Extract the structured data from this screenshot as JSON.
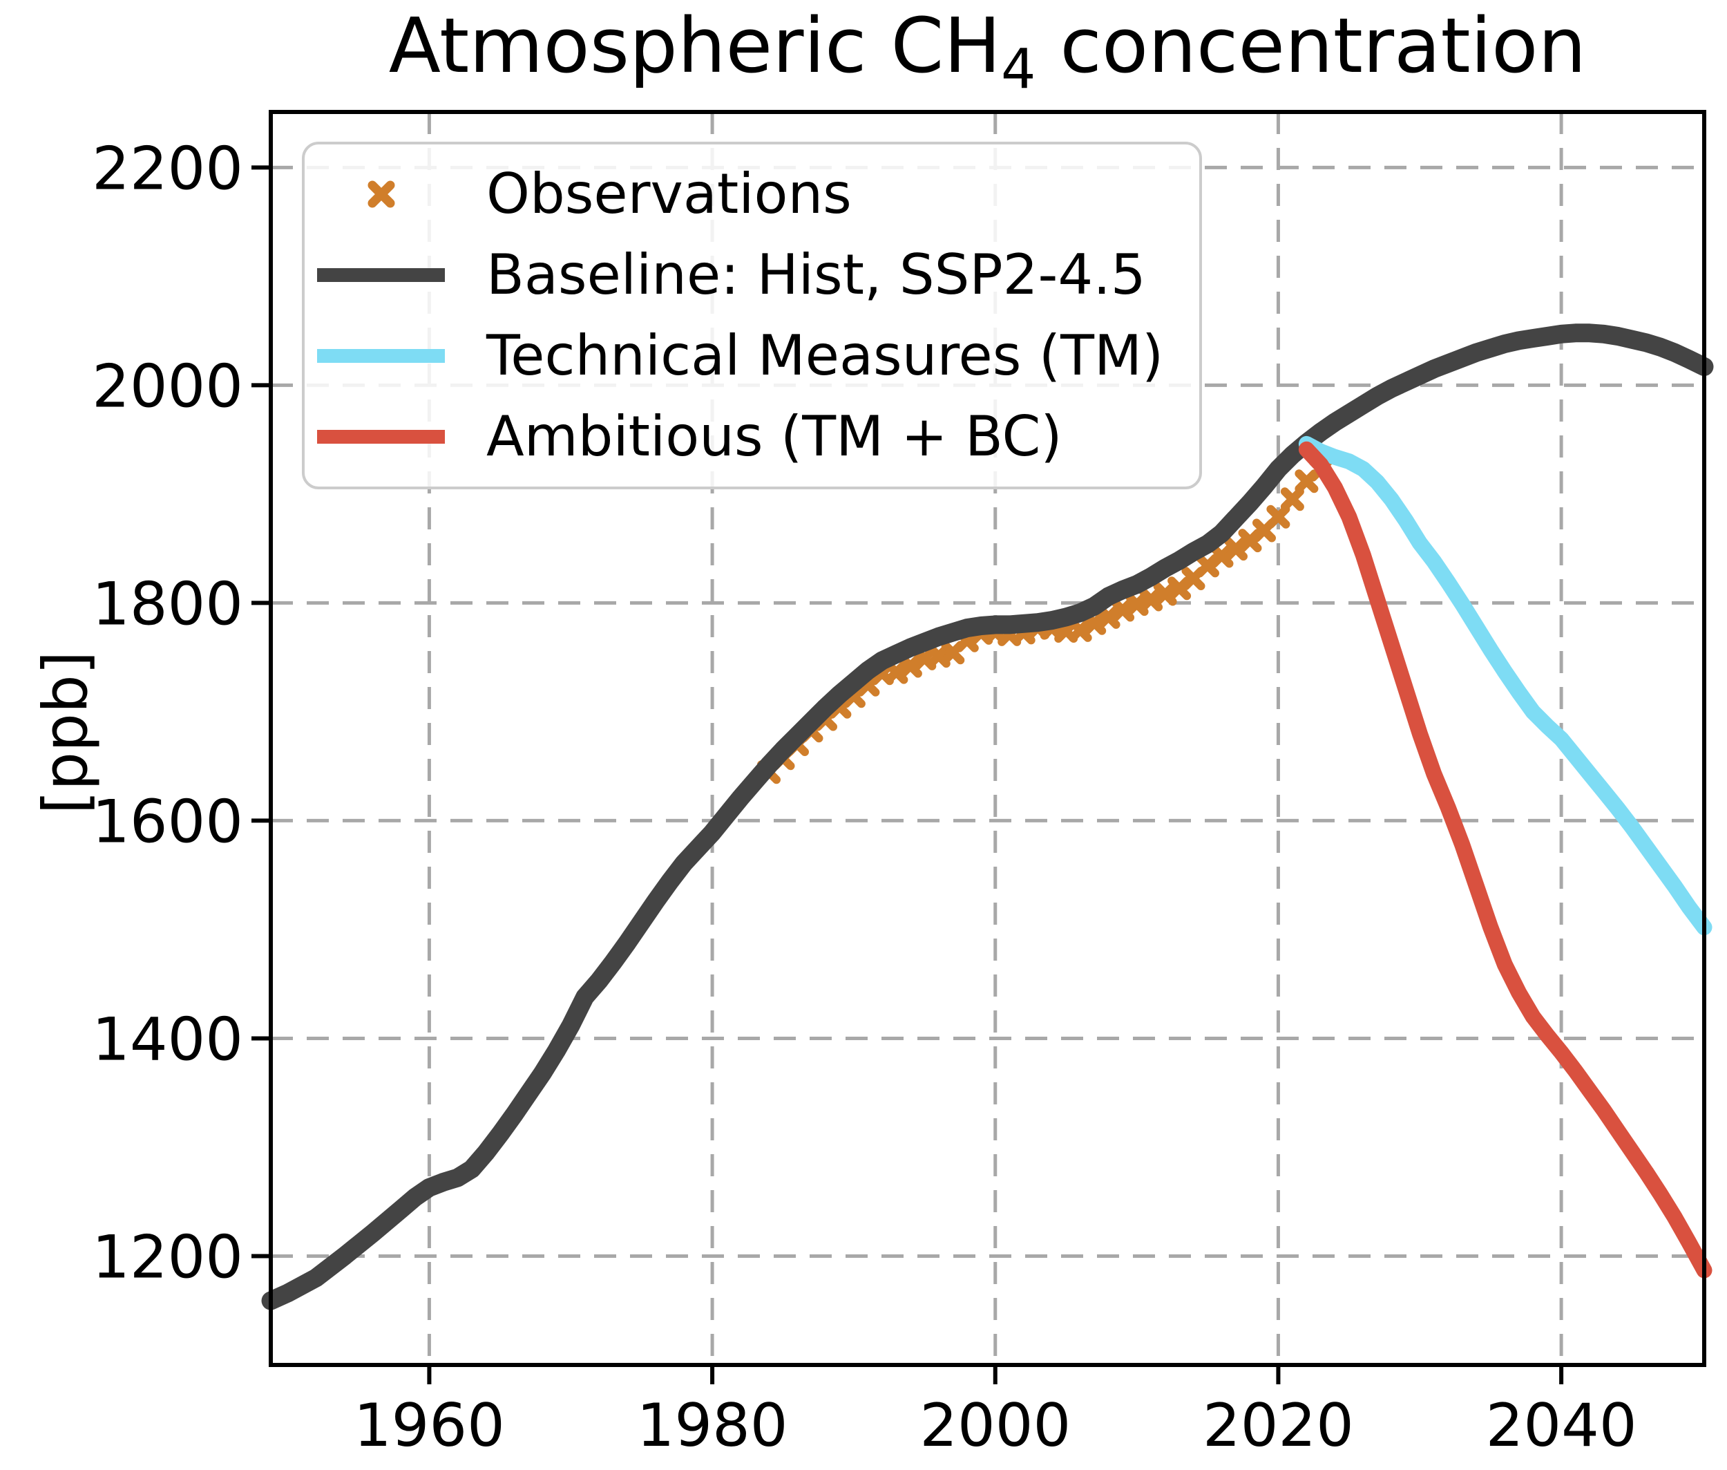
{
  "title": {
    "prefix": "Atmospheric CH",
    "subscript": "4",
    "suffix": " concentration"
  },
  "y_axis_label": "[ppb]",
  "legend": {
    "position": "upper left",
    "items": [
      {
        "label": "Observations"
      },
      {
        "label": "Baseline: Hist, SSP2-4.5"
      },
      {
        "label": "Technical Measures (TM)"
      },
      {
        "label": "Ambitious (TM + BC)"
      }
    ]
  },
  "chart_data": {
    "type": "line",
    "title": "Atmospheric CH4 concentration",
    "xlabel": "",
    "ylabel": "[ppb]",
    "xlim": [
      1948.8,
      2050.1
    ],
    "ylim": [
      1100,
      2251
    ],
    "x_ticks": [
      1960,
      1980,
      2000,
      2020,
      2040
    ],
    "y_ticks": [
      1200,
      1400,
      1600,
      1800,
      2000,
      2200
    ],
    "grid": "dashed",
    "grid_color": "#a8a8a8",
    "background": "#ffffff",
    "legend_position": "upper left",
    "series": [
      {
        "name": "Observations",
        "type": "scatter",
        "marker": "X",
        "color": "#D07E2B",
        "points": [
          [
            1984,
            1644.6
          ],
          [
            1985,
            1657.3
          ],
          [
            1986,
            1670.1
          ],
          [
            1987,
            1682.7
          ],
          [
            1988,
            1693.2
          ],
          [
            1989,
            1704.5
          ],
          [
            1990,
            1714.4
          ],
          [
            1991,
            1724.8
          ],
          [
            1992,
            1735.3
          ],
          [
            1993,
            1736.4
          ],
          [
            1994,
            1742.1
          ],
          [
            1995,
            1748.9
          ],
          [
            1996,
            1751.3
          ],
          [
            1997,
            1754.4
          ],
          [
            1998,
            1765.5
          ],
          [
            1999,
            1772.4
          ],
          [
            2000,
            1773.3
          ],
          [
            2001,
            1771.1
          ],
          [
            2002,
            1772.7
          ],
          [
            2003,
            1777.3
          ],
          [
            2004,
            1777.0
          ],
          [
            2005,
            1774.2
          ],
          [
            2006,
            1774.9
          ],
          [
            2007,
            1781.4
          ],
          [
            2008,
            1787.0
          ],
          [
            2009,
            1793.6
          ],
          [
            2010,
            1798.9
          ],
          [
            2011,
            1803.1
          ],
          [
            2012,
            1808.2
          ],
          [
            2013,
            1813.4
          ],
          [
            2014,
            1822.5
          ],
          [
            2015,
            1834.3
          ],
          [
            2016,
            1843.1
          ],
          [
            2017,
            1849.7
          ],
          [
            2018,
            1857.3
          ],
          [
            2019,
            1866.6
          ],
          [
            2020,
            1879.1
          ],
          [
            2021,
            1895.3
          ],
          [
            2022,
            1911.8
          ],
          [
            2023,
            1922.4
          ]
        ]
      },
      {
        "name": "Baseline: Hist, SSP2-4.5",
        "type": "line",
        "color": "#444444",
        "width": 27,
        "points": [
          [
            1948.8,
            1159
          ],
          [
            1950,
            1166
          ],
          [
            1952,
            1180
          ],
          [
            1954,
            1200
          ],
          [
            1956,
            1221
          ],
          [
            1958,
            1243
          ],
          [
            1959,
            1254
          ],
          [
            1960,
            1263
          ],
          [
            1961,
            1268
          ],
          [
            1962,
            1272
          ],
          [
            1963,
            1280
          ],
          [
            1964,
            1295
          ],
          [
            1965,
            1312
          ],
          [
            1966,
            1330
          ],
          [
            1967,
            1349
          ],
          [
            1968,
            1368
          ],
          [
            1969,
            1389
          ],
          [
            1970,
            1412
          ],
          [
            1971,
            1438
          ],
          [
            1972,
            1453
          ],
          [
            1973,
            1470
          ],
          [
            1974,
            1488
          ],
          [
            1975,
            1507
          ],
          [
            1976,
            1526
          ],
          [
            1977,
            1544
          ],
          [
            1978,
            1561
          ],
          [
            1979,
            1575
          ],
          [
            1980,
            1589
          ],
          [
            1981,
            1605
          ],
          [
            1982,
            1621
          ],
          [
            1983,
            1636
          ],
          [
            1984,
            1651
          ],
          [
            1985,
            1665
          ],
          [
            1986,
            1678
          ],
          [
            1987,
            1691
          ],
          [
            1988,
            1704
          ],
          [
            1989,
            1716
          ],
          [
            1990,
            1727
          ],
          [
            1991,
            1738
          ],
          [
            1992,
            1747
          ],
          [
            1993,
            1753
          ],
          [
            1994,
            1759
          ],
          [
            1995,
            1764
          ],
          [
            1996,
            1769
          ],
          [
            1997,
            1773
          ],
          [
            1998,
            1777
          ],
          [
            1999,
            1779
          ],
          [
            2000,
            1780
          ],
          [
            2001,
            1780
          ],
          [
            2002,
            1781
          ],
          [
            2003,
            1782
          ],
          [
            2004,
            1784
          ],
          [
            2005,
            1787
          ],
          [
            2006,
            1791
          ],
          [
            2007,
            1797
          ],
          [
            2008,
            1806
          ],
          [
            2009,
            1812
          ],
          [
            2010,
            1817
          ],
          [
            2011,
            1824
          ],
          [
            2012,
            1832
          ],
          [
            2013,
            1839
          ],
          [
            2014,
            1847
          ],
          [
            2015,
            1854
          ],
          [
            2016,
            1864
          ],
          [
            2017,
            1878
          ],
          [
            2018,
            1892
          ],
          [
            2019,
            1907
          ],
          [
            2020,
            1923
          ],
          [
            2021,
            1936
          ],
          [
            2022,
            1947
          ],
          [
            2023,
            1957
          ],
          [
            2024,
            1966
          ],
          [
            2025,
            1974
          ],
          [
            2026,
            1982
          ],
          [
            2027,
            1990
          ],
          [
            2028,
            1997
          ],
          [
            2029,
            2003
          ],
          [
            2030,
            2009
          ],
          [
            2031,
            2015
          ],
          [
            2032,
            2020
          ],
          [
            2033,
            2025
          ],
          [
            2034,
            2030
          ],
          [
            2035,
            2034
          ],
          [
            2036,
            2038
          ],
          [
            2037,
            2041
          ],
          [
            2038,
            2043
          ],
          [
            2039,
            2045
          ],
          [
            2040,
            2047
          ],
          [
            2041,
            2048
          ],
          [
            2042,
            2048
          ],
          [
            2043,
            2047
          ],
          [
            2044,
            2045
          ],
          [
            2045,
            2042
          ],
          [
            2046,
            2039
          ],
          [
            2047,
            2035
          ],
          [
            2048,
            2030
          ],
          [
            2049,
            2024
          ],
          [
            2050.1,
            2017
          ]
        ]
      },
      {
        "name": "Technical Measures (TM)",
        "type": "line",
        "color": "#7EDCF4",
        "width": 23,
        "points": [
          [
            2022,
            1946
          ],
          [
            2023,
            1939
          ],
          [
            2024,
            1934
          ],
          [
            2025,
            1930
          ],
          [
            2026,
            1923
          ],
          [
            2027,
            1911
          ],
          [
            2028,
            1895
          ],
          [
            2029,
            1876
          ],
          [
            2030,
            1855
          ],
          [
            2031,
            1838
          ],
          [
            2032,
            1819
          ],
          [
            2033,
            1799
          ],
          [
            2034,
            1778
          ],
          [
            2035,
            1757
          ],
          [
            2036,
            1737
          ],
          [
            2037,
            1718
          ],
          [
            2038,
            1700
          ],
          [
            2039,
            1687
          ],
          [
            2040,
            1675
          ],
          [
            2041,
            1659
          ],
          [
            2042,
            1643
          ],
          [
            2043,
            1627
          ],
          [
            2044,
            1611
          ],
          [
            2045,
            1594
          ],
          [
            2046,
            1576
          ],
          [
            2047,
            1558
          ],
          [
            2048,
            1540
          ],
          [
            2049,
            1521
          ],
          [
            2050.1,
            1502
          ]
        ]
      },
      {
        "name": "Ambitious (TM + BC)",
        "type": "line",
        "color": "#D9513F",
        "width": 23,
        "points": [
          [
            2022,
            1941
          ],
          [
            2023,
            1927
          ],
          [
            2024,
            1906
          ],
          [
            2025,
            1879
          ],
          [
            2026,
            1844
          ],
          [
            2027,
            1803
          ],
          [
            2028,
            1762
          ],
          [
            2029,
            1721
          ],
          [
            2030,
            1680
          ],
          [
            2031,
            1643
          ],
          [
            2032,
            1612
          ],
          [
            2033,
            1578
          ],
          [
            2034,
            1540
          ],
          [
            2035,
            1502
          ],
          [
            2036,
            1468
          ],
          [
            2037,
            1442
          ],
          [
            2038,
            1420
          ],
          [
            2039,
            1403
          ],
          [
            2040,
            1387
          ],
          [
            2041,
            1370
          ],
          [
            2042,
            1352
          ],
          [
            2043,
            1334
          ],
          [
            2044,
            1315
          ],
          [
            2045,
            1296
          ],
          [
            2046,
            1277
          ],
          [
            2047,
            1257
          ],
          [
            2048,
            1236
          ],
          [
            2049,
            1213
          ],
          [
            2050.1,
            1187
          ]
        ]
      }
    ]
  }
}
